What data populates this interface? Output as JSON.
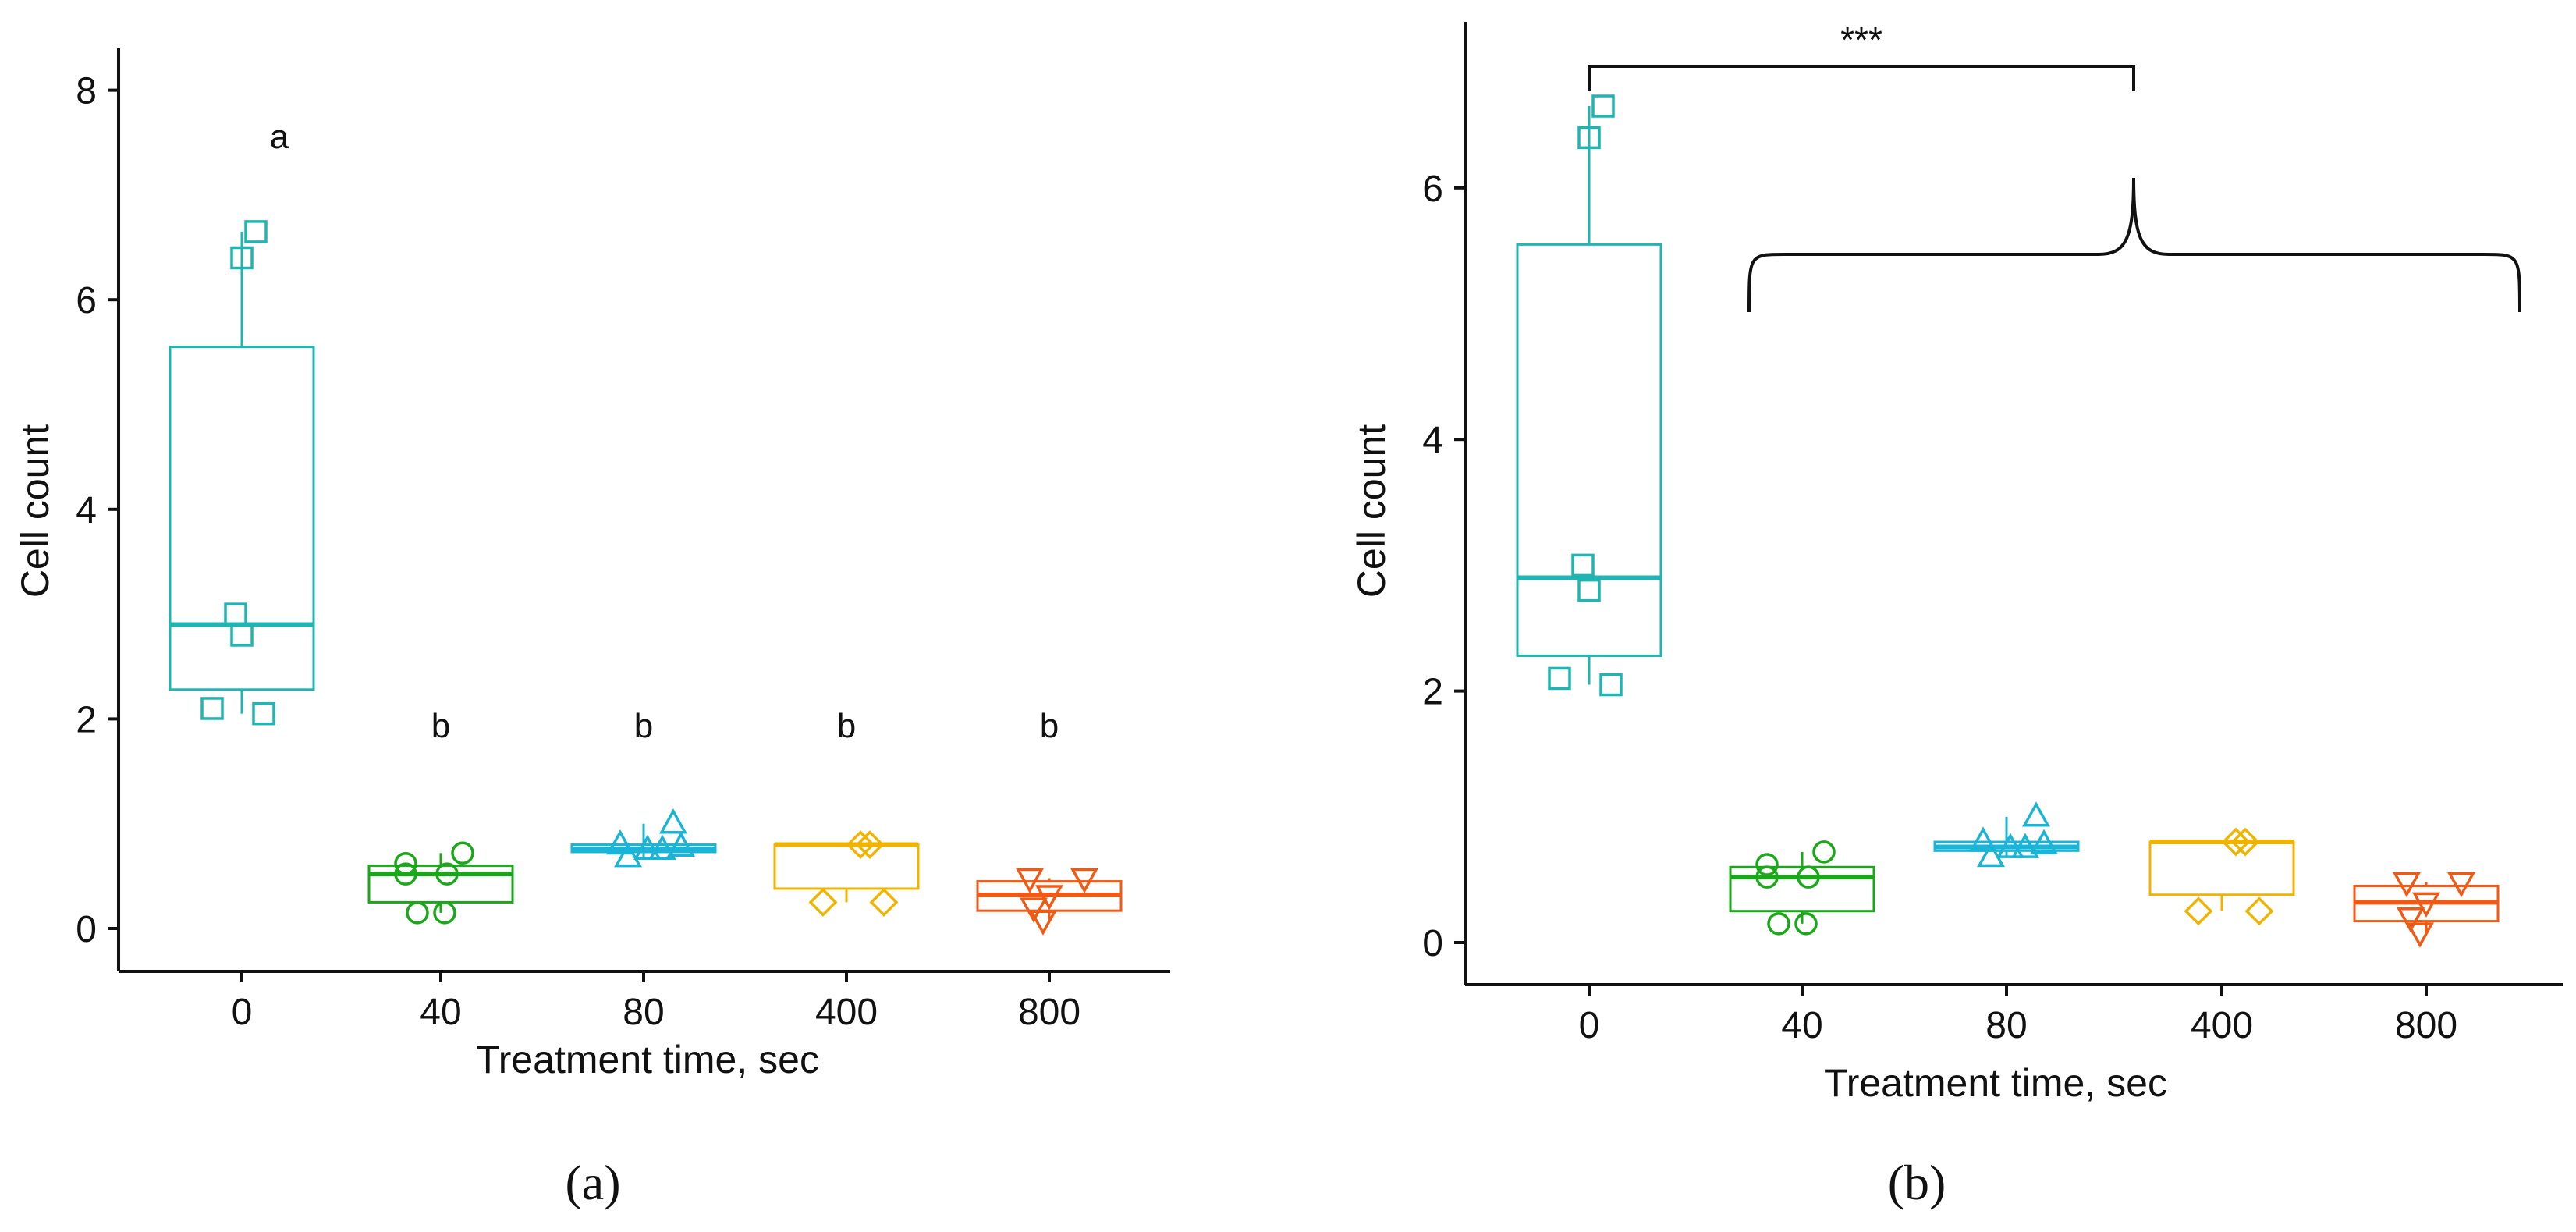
{
  "colors": {
    "0": "#1fb5b3",
    "40": "#1aa81a",
    "80": "#1ab4d6",
    "400": "#f0b400",
    "800": "#f05a14",
    "axis": "#111111"
  },
  "chart_data": [
    {
      "type": "box",
      "panel": "(a)",
      "xlabel": "Treatment time, sec",
      "ylabel": "Cell count",
      "ylim": [
        0,
        8
      ],
      "yticks": [
        0,
        2,
        4,
        6,
        8
      ],
      "categories": [
        "0",
        "40",
        "80",
        "400",
        "800"
      ],
      "boxes": [
        {
          "category": "0",
          "q1": 2.28,
          "median": 2.9,
          "q3": 5.55,
          "whisker_low": 2.05,
          "whisker_high": 6.65,
          "marker": "square",
          "points": [
            2.1,
            2.05,
            3.0,
            2.8,
            6.4,
            6.65
          ]
        },
        {
          "category": "40",
          "q1": 0.25,
          "median": 0.52,
          "q3": 0.6,
          "whisker_low": 0.15,
          "whisker_high": 0.72,
          "marker": "circle",
          "points": [
            0.62,
            0.52,
            0.52,
            0.72,
            0.15,
            0.15
          ]
        },
        {
          "category": "80",
          "q1": 0.73,
          "median": 0.76,
          "q3": 0.8,
          "whisker_low": 0.68,
          "whisker_high": 1.0,
          "marker": "triangle-up",
          "points": [
            0.8,
            0.68,
            0.75,
            1.0,
            0.75,
            0.78
          ]
        },
        {
          "category": "400",
          "q1": 0.38,
          "median": 0.8,
          "q3": 0.8,
          "whisker_low": 0.25,
          "whisker_high": 0.8,
          "marker": "diamond",
          "points": [
            0.25,
            0.8,
            0.8,
            0.25
          ]
        },
        {
          "category": "800",
          "q1": 0.17,
          "median": 0.32,
          "q3": 0.45,
          "whisker_low": 0.08,
          "whisker_high": 0.48,
          "marker": "triangle-down",
          "points": [
            0.48,
            0.32,
            0.2,
            0.08,
            0.48
          ]
        }
      ],
      "annotations": [
        "a",
        "b",
        "b",
        "b",
        "b"
      ]
    },
    {
      "type": "box",
      "panel": "(b)",
      "xlabel": "Treatment time, sec",
      "ylabel": "Cell count",
      "ylim": [
        0,
        7.2
      ],
      "yticks": [
        0,
        2,
        4,
        6
      ],
      "categories": [
        "0",
        "40",
        "80",
        "400",
        "800"
      ],
      "boxes": [
        {
          "category": "0",
          "q1": 2.28,
          "median": 2.9,
          "q3": 5.55,
          "whisker_low": 2.05,
          "whisker_high": 6.65,
          "marker": "square",
          "points": [
            2.1,
            2.05,
            3.0,
            2.8,
            6.4,
            6.65
          ]
        },
        {
          "category": "40",
          "q1": 0.25,
          "median": 0.52,
          "q3": 0.6,
          "whisker_low": 0.15,
          "whisker_high": 0.72,
          "marker": "circle",
          "points": [
            0.62,
            0.52,
            0.52,
            0.72,
            0.15,
            0.15
          ]
        },
        {
          "category": "80",
          "q1": 0.73,
          "median": 0.76,
          "q3": 0.8,
          "whisker_low": 0.68,
          "whisker_high": 1.0,
          "marker": "triangle-up",
          "points": [
            0.8,
            0.68,
            0.75,
            1.0,
            0.75,
            0.78
          ]
        },
        {
          "category": "400",
          "q1": 0.38,
          "median": 0.8,
          "q3": 0.8,
          "whisker_low": 0.25,
          "whisker_high": 0.8,
          "marker": "diamond",
          "points": [
            0.25,
            0.8,
            0.8,
            0.25
          ]
        },
        {
          "category": "800",
          "q1": 0.17,
          "median": 0.32,
          "q3": 0.45,
          "whisker_low": 0.08,
          "whisker_high": 0.48,
          "marker": "triangle-down",
          "points": [
            0.48,
            0.32,
            0.2,
            0.08,
            0.48
          ]
        }
      ],
      "significance": {
        "label": "***",
        "from": "0",
        "to": [
          "40",
          "80",
          "400",
          "800"
        ]
      }
    }
  ]
}
